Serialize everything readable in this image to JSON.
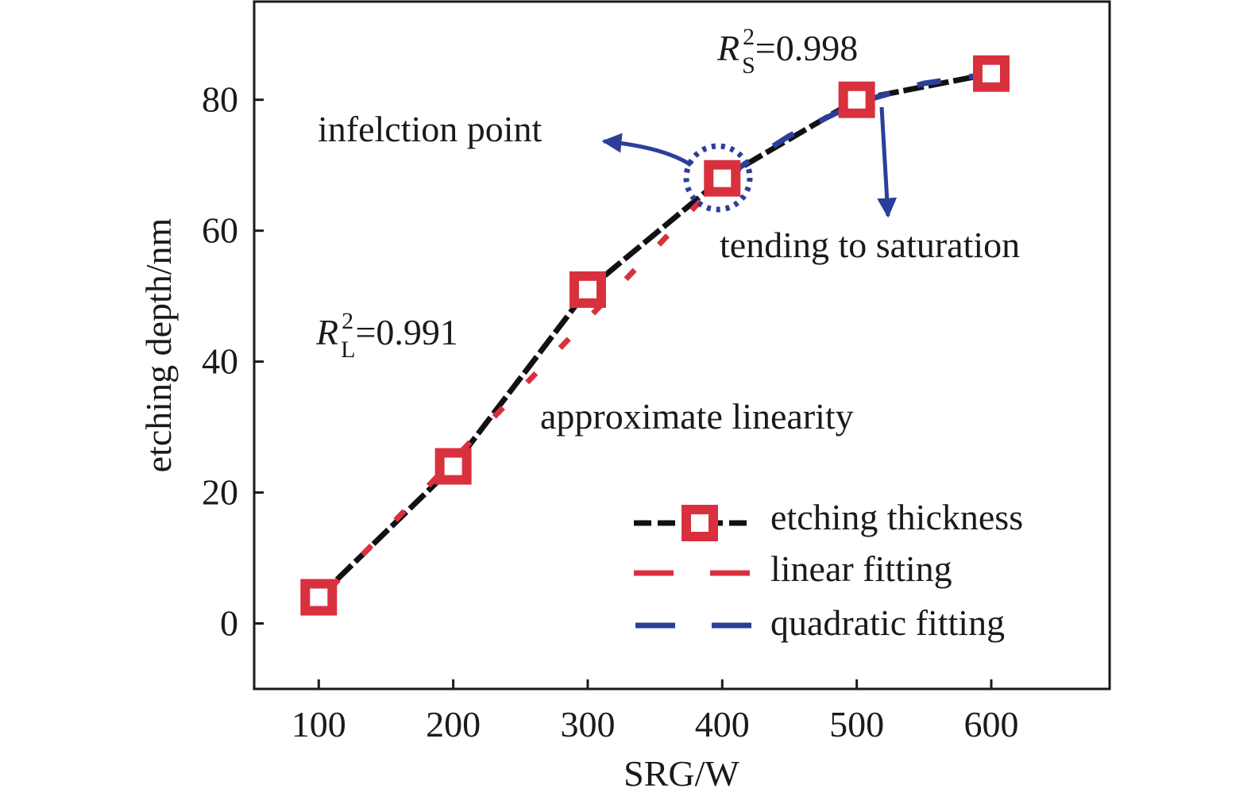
{
  "chart_data": {
    "type": "line",
    "xlabel": "SRG/W",
    "ylabel": "etching depth/nm",
    "xlim": [
      52,
      688
    ],
    "ylim": [
      -10,
      95
    ],
    "xticks": [
      100,
      200,
      300,
      400,
      500,
      600
    ],
    "yticks": [
      0,
      20,
      40,
      60,
      80
    ],
    "grid": false,
    "legend_position": "bottom-right",
    "colors": {
      "data": "#111111",
      "marker": "#d9303e",
      "linear": "#d9303e",
      "quadratic": "#2b3f9a"
    },
    "series": [
      {
        "name": "etching thickness",
        "style": "black dashed line with red square markers",
        "x": [
          100,
          200,
          300,
          400,
          500,
          600
        ],
        "y": [
          4,
          24,
          51,
          68,
          80,
          84
        ]
      },
      {
        "name": "linear fitting",
        "style": "red dashed line",
        "x": [
          100,
          400
        ],
        "y": [
          3.5,
          68
        ]
      },
      {
        "name": "quadratic fitting",
        "style": "blue dashed line",
        "x": [
          400,
          450,
          500,
          550,
          600
        ],
        "y": [
          68,
          74.5,
          79.5,
          82.5,
          84
        ]
      }
    ],
    "annotations": {
      "r2_linear": {
        "R": "R",
        "sup": "2",
        "sub": "L",
        "value": "=0.991"
      },
      "r2_saturation": {
        "R": "R",
        "sup": "2",
        "sub": "S",
        "value": "=0.998"
      },
      "inflection": "infelction point",
      "saturation": "tending to saturation",
      "linearity": "approximate linearity"
    }
  }
}
